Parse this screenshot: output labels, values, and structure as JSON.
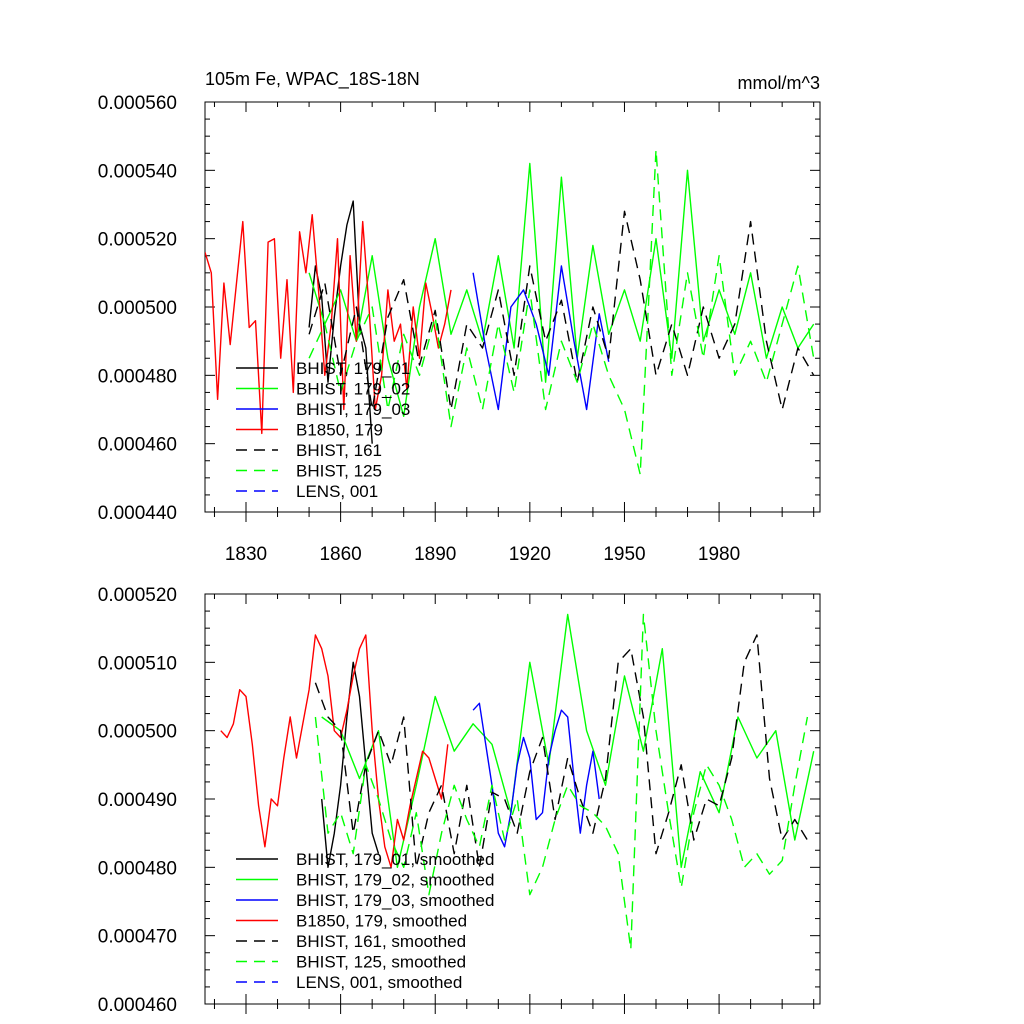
{
  "chart_data": [
    {
      "type": "line",
      "title": "105m Fe, WPAC_18S-18N",
      "units": "mmol/m^3",
      "xlabel": "",
      "ylabel": "",
      "xlim": [
        1817,
        2012
      ],
      "ylim": [
        0.00044,
        0.00056
      ],
      "xticks": [
        1830,
        1860,
        1890,
        1920,
        1950,
        1980
      ],
      "xtick_labels": [
        "1830",
        "1860",
        "1890",
        "1920",
        "1950",
        "1980"
      ],
      "yticks": [
        0.00044,
        0.00046,
        0.00048,
        0.0005,
        0.00052,
        0.00054,
        0.00056
      ],
      "ytick_labels": [
        "0.000440",
        "0.000460",
        "0.000480",
        "0.000500",
        "0.000520",
        "0.000540",
        "0.000560"
      ],
      "legend_position": "bottom-left",
      "series": [
        {
          "name": "BHIST, 179_01",
          "color": "#000000",
          "dash": "solid",
          "x": [
            1850,
            1852,
            1854,
            1856,
            1858,
            1860,
            1862,
            1864,
            1866,
            1868,
            1870
          ],
          "values": [
            0.000494,
            0.000512,
            0.000503,
            0.000478,
            0.000497,
            0.000512,
            0.000524,
            0.000531,
            0.000495,
            0.000488,
            0.00046
          ]
        },
        {
          "name": "BHIST, 179_02",
          "color": "#00ff00",
          "dash": "solid",
          "x": [
            1850,
            1855,
            1860,
            1865,
            1870,
            1875,
            1880,
            1885,
            1890,
            1895,
            1900,
            1905,
            1910,
            1915,
            1920,
            1925,
            1930,
            1935,
            1940,
            1945,
            1950,
            1955,
            1960,
            1965,
            1970,
            1975,
            1980,
            1985,
            1990,
            1995,
            2000,
            2005,
            2010
          ],
          "values": [
            0.00051,
            0.000495,
            0.000505,
            0.00049,
            0.000515,
            0.000485,
            0.000468,
            0.0005,
            0.00052,
            0.000492,
            0.000505,
            0.00049,
            0.000515,
            0.000488,
            0.000542,
            0.000478,
            0.000538,
            0.000485,
            0.000518,
            0.000492,
            0.000505,
            0.00049,
            0.00052,
            0.000485,
            0.00054,
            0.00049,
            0.000505,
            0.000492,
            0.00051,
            0.000485,
            0.0005,
            0.000488,
            0.000495
          ]
        },
        {
          "name": "BHIST, 179_03",
          "color": "#0000ff",
          "dash": "solid",
          "x": [
            1902,
            1906,
            1910,
            1914,
            1918,
            1922,
            1926,
            1930,
            1934,
            1938,
            1942,
            1945
          ],
          "values": [
            0.00051,
            0.000488,
            0.00047,
            0.0005,
            0.000505,
            0.000495,
            0.00048,
            0.000512,
            0.00049,
            0.00047,
            0.000498,
            0.000484
          ]
        },
        {
          "name": "B1850, 179",
          "color": "#ff0000",
          "dash": "solid",
          "x": [
            1817,
            1819,
            1821,
            1823,
            1825,
            1827,
            1829,
            1831,
            1833,
            1835,
            1837,
            1839,
            1841,
            1843,
            1845,
            1847,
            1849,
            1851,
            1853,
            1855,
            1857,
            1859,
            1861,
            1863,
            1865,
            1867,
            1869,
            1871,
            1873,
            1875,
            1877,
            1879,
            1881,
            1883,
            1885,
            1887,
            1889,
            1891,
            1893,
            1895
          ],
          "values": [
            0.000516,
            0.00051,
            0.000473,
            0.000507,
            0.000489,
            0.000507,
            0.000525,
            0.000494,
            0.000496,
            0.000463,
            0.000519,
            0.00052,
            0.000485,
            0.000508,
            0.000475,
            0.000522,
            0.00051,
            0.000527,
            0.000505,
            0.00048,
            0.000495,
            0.00052,
            0.00047,
            0.000515,
            0.00049,
            0.000525,
            0.0005,
            0.00047,
            0.00048,
            0.000505,
            0.00049,
            0.000495,
            0.000476,
            0.0005,
            0.000485,
            0.000507,
            0.000498,
            0.000488,
            0.000495,
            0.000505
          ]
        },
        {
          "name": "BHIST, 161",
          "color": "#000000",
          "dash": "dashed",
          "x": [
            1850,
            1855,
            1860,
            1865,
            1870,
            1875,
            1880,
            1885,
            1890,
            1895,
            1900,
            1905,
            1910,
            1915,
            1920,
            1925,
            1930,
            1935,
            1940,
            1945,
            1950,
            1955,
            1960,
            1965,
            1970,
            1975,
            1980,
            1985,
            1990,
            1995,
            2000,
            2005,
            2010
          ],
          "values": [
            0.000492,
            0.000507,
            0.00048,
            0.0005,
            0.00047,
            0.000497,
            0.000508,
            0.000483,
            0.000499,
            0.00047,
            0.000495,
            0.000488,
            0.000505,
            0.00048,
            0.000512,
            0.00049,
            0.000502,
            0.000478,
            0.0005,
            0.000485,
            0.000528,
            0.000508,
            0.00048,
            0.000495,
            0.00048,
            0.0005,
            0.000485,
            0.000495,
            0.000525,
            0.00049,
            0.00047,
            0.000488,
            0.00048
          ]
        },
        {
          "name": "BHIST, 125",
          "color": "#00ff00",
          "dash": "dashed",
          "x": [
            1850,
            1855,
            1860,
            1865,
            1870,
            1875,
            1880,
            1885,
            1890,
            1895,
            1900,
            1905,
            1910,
            1915,
            1920,
            1925,
            1930,
            1935,
            1940,
            1945,
            1950,
            1955,
            1960,
            1965,
            1970,
            1975,
            1980,
            1985,
            1990,
            1995,
            2000,
            2005,
            2010
          ],
          "values": [
            0.000485,
            0.000495,
            0.000475,
            0.00049,
            0.0005,
            0.00047,
            0.000492,
            0.00048,
            0.000497,
            0.000465,
            0.000488,
            0.00047,
            0.000495,
            0.000475,
            0.000505,
            0.00047,
            0.00049,
            0.000478,
            0.000495,
            0.00048,
            0.00047,
            0.000451,
            0.000546,
            0.00048,
            0.00051,
            0.000485,
            0.000515,
            0.00048,
            0.00049,
            0.000478,
            0.000495,
            0.000512,
            0.000485
          ]
        },
        {
          "name": "LENS, 001",
          "color": "#0000ff",
          "dash": "dashed",
          "x": [],
          "values": []
        }
      ]
    },
    {
      "type": "line",
      "title": "",
      "xlabel": "",
      "ylabel": "",
      "xlim": [
        1817,
        2012
      ],
      "ylim": [
        0.00046,
        0.00052
      ],
      "yticks": [
        0.00046,
        0.00047,
        0.00048,
        0.00049,
        0.0005,
        0.00051,
        0.00052
      ],
      "ytick_labels": [
        "0.000460",
        "0.000470",
        "0.000480",
        "0.000490",
        "0.000500",
        "0.000510",
        "0.000520"
      ],
      "legend_position": "bottom-left",
      "series": [
        {
          "name": "BHIST, 179_01, smoothed",
          "color": "#000000",
          "dash": "solid",
          "x": [
            1854,
            1856,
            1858,
            1860,
            1862,
            1864,
            1866,
            1868,
            1870,
            1872
          ],
          "values": [
            0.00049,
            0.00048,
            0.000485,
            0.000492,
            0.000502,
            0.00051,
            0.000505,
            0.000495,
            0.000485,
            0.000482
          ]
        },
        {
          "name": "BHIST, 179_02, smoothed",
          "color": "#00ff00",
          "dash": "solid",
          "x": [
            1854,
            1860,
            1866,
            1872,
            1878,
            1884,
            1890,
            1896,
            1902,
            1908,
            1914,
            1920,
            1926,
            1932,
            1938,
            1944,
            1950,
            1956,
            1962,
            1968,
            1974,
            1980,
            1986,
            1992,
            1998,
            2004,
            2010
          ],
          "values": [
            0.000502,
            0.0005,
            0.000493,
            0.0005,
            0.00048,
            0.000492,
            0.000505,
            0.000497,
            0.000501,
            0.000498,
            0.000488,
            0.00051,
            0.000495,
            0.000517,
            0.0005,
            0.000492,
            0.000508,
            0.000497,
            0.000512,
            0.00048,
            0.000494,
            0.000488,
            0.000502,
            0.000496,
            0.0005,
            0.000484,
            0.000497
          ]
        },
        {
          "name": "BHIST, 179_03, smoothed",
          "color": "#0000ff",
          "dash": "solid",
          "x": [
            1902,
            1904,
            1906,
            1908,
            1910,
            1912,
            1914,
            1916,
            1918,
            1920,
            1922,
            1924,
            1926,
            1928,
            1930,
            1932,
            1934,
            1936,
            1938,
            1940,
            1942
          ],
          "values": [
            0.000503,
            0.000504,
            0.000498,
            0.000492,
            0.000485,
            0.000483,
            0.000488,
            0.000495,
            0.000499,
            0.000496,
            0.000487,
            0.000488,
            0.000496,
            0.0005,
            0.000503,
            0.000502,
            0.000493,
            0.000485,
            0.000492,
            0.000497,
            0.00049
          ]
        },
        {
          "name": "B1850, 179, smoothed",
          "color": "#ff0000",
          "dash": "solid",
          "x": [
            1822,
            1824,
            1826,
            1828,
            1830,
            1832,
            1834,
            1836,
            1838,
            1840,
            1842,
            1844,
            1846,
            1848,
            1850,
            1852,
            1854,
            1856,
            1858,
            1860,
            1862,
            1864,
            1866,
            1868,
            1870,
            1872,
            1874,
            1876,
            1878,
            1880,
            1882,
            1884,
            1886,
            1888,
            1890,
            1892,
            1894
          ],
          "values": [
            0.0005,
            0.000499,
            0.000501,
            0.000506,
            0.000505,
            0.000498,
            0.000489,
            0.000483,
            0.00049,
            0.000489,
            0.000496,
            0.000502,
            0.000496,
            0.000501,
            0.000506,
            0.000514,
            0.000512,
            0.000508,
            0.0005,
            0.000499,
            0.000503,
            0.000508,
            0.000512,
            0.000514,
            0.0005,
            0.00049,
            0.000483,
            0.00048,
            0.000487,
            0.000484,
            0.000489,
            0.000493,
            0.000497,
            0.000496,
            0.000493,
            0.00049,
            0.000498
          ]
        },
        {
          "name": "BHIST, 161, smoothed",
          "color": "#000000",
          "dash": "dashed",
          "x": [
            1852,
            1856,
            1860,
            1864,
            1868,
            1872,
            1876,
            1880,
            1884,
            1888,
            1892,
            1896,
            1900,
            1904,
            1908,
            1912,
            1916,
            1920,
            1924,
            1928,
            1932,
            1936,
            1940,
            1944,
            1948,
            1952,
            1956,
            1960,
            1964,
            1968,
            1972,
            1976,
            1980,
            1984,
            1988,
            1992,
            1996,
            2000,
            2004,
            2008
          ],
          "values": [
            0.000507,
            0.000502,
            0.0005,
            0.000485,
            0.000495,
            0.0005,
            0.000495,
            0.000502,
            0.00048,
            0.000488,
            0.000492,
            0.000482,
            0.000492,
            0.00048,
            0.000491,
            0.00049,
            0.000485,
            0.000494,
            0.000499,
            0.000487,
            0.000496,
            0.00049,
            0.000485,
            0.000493,
            0.00051,
            0.000512,
            0.000502,
            0.000482,
            0.000488,
            0.000495,
            0.000484,
            0.00049,
            0.000489,
            0.000496,
            0.00051,
            0.000514,
            0.000493,
            0.000484,
            0.000487,
            0.000484
          ]
        },
        {
          "name": "BHIST, 125, smoothed",
          "color": "#00ff00",
          "dash": "dashed",
          "x": [
            1852,
            1856,
            1860,
            1864,
            1868,
            1872,
            1876,
            1880,
            1884,
            1888,
            1892,
            1896,
            1900,
            1904,
            1908,
            1912,
            1916,
            1920,
            1924,
            1928,
            1932,
            1936,
            1940,
            1944,
            1948,
            1952,
            1956,
            1960,
            1964,
            1968,
            1972,
            1976,
            1980,
            1984,
            1988,
            1992,
            1996,
            2000,
            2004,
            2008
          ],
          "values": [
            0.000502,
            0.000485,
            0.000488,
            0.000482,
            0.000495,
            0.00049,
            0.000484,
            0.00048,
            0.000488,
            0.000476,
            0.000485,
            0.000492,
            0.000487,
            0.000483,
            0.000492,
            0.000484,
            0.00049,
            0.000476,
            0.00048,
            0.000487,
            0.000492,
            0.000489,
            0.000488,
            0.000486,
            0.000482,
            0.000468,
            0.000517,
            0.0005,
            0.000488,
            0.000477,
            0.000488,
            0.000495,
            0.000492,
            0.000487,
            0.00048,
            0.000482,
            0.000479,
            0.000481,
            0.000492,
            0.000502
          ]
        },
        {
          "name": "LENS, 001, smoothed",
          "color": "#0000ff",
          "dash": "dashed",
          "x": [],
          "values": []
        }
      ]
    }
  ]
}
